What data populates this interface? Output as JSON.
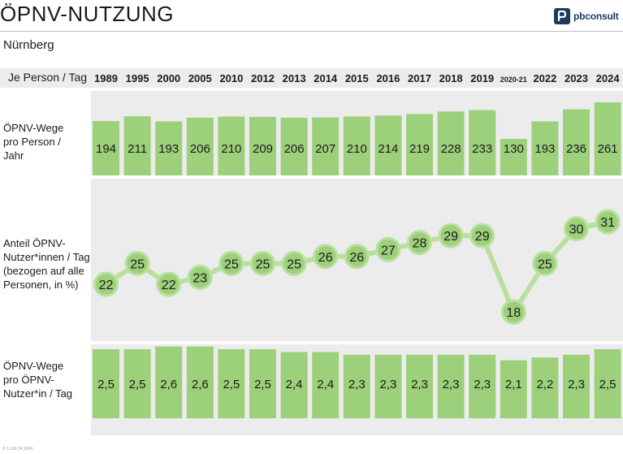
{
  "title": "ÖPNV-NUTZUNG",
  "subtitle": "Nürnberg",
  "logo_text": "pbconsult",
  "corner_label": "Je Person / Tag",
  "footer_note": "© 1.180.24.1604",
  "colors": {
    "bar": "#9dd07a",
    "circle": "#9dd07a",
    "circle_ring": "#b9e09f",
    "line": "#b9e09f",
    "band": "#ececec",
    "logo": "#1f3a5f"
  },
  "chart_data": {
    "type": "table",
    "categories": [
      "1989",
      "1995",
      "2000",
      "2005",
      "2010",
      "2012",
      "2013",
      "2014",
      "2015",
      "2016",
      "2017",
      "2018",
      "2019",
      "2020-21",
      "2022",
      "2023",
      "2024"
    ],
    "rows": [
      {
        "label": "ÖPNV-Wege pro Person / Jahr",
        "label_lines": [
          "ÖPNV-Wege",
          "pro Person /",
          "Jahr"
        ],
        "type": "bar",
        "values": [
          194,
          211,
          193,
          206,
          210,
          209,
          206,
          207,
          210,
          214,
          219,
          228,
          233,
          130,
          193,
          236,
          261
        ],
        "display": [
          "194",
          "211",
          "193",
          "206",
          "210",
          "209",
          "206",
          "207",
          "210",
          "214",
          "219",
          "228",
          "233",
          "130",
          "193",
          "236",
          "261"
        ]
      },
      {
        "label": "Anteil ÖPNV-Nutzer*innen / Tag (bezogen auf alle Personen, in %)",
        "label_lines": [
          "Anteil ÖPNV-",
          "Nutzer*innen / Tag",
          "(bezogen auf alle",
          "Personen, in %)"
        ],
        "type": "line",
        "values": [
          22,
          25,
          22,
          23,
          25,
          25,
          25,
          26,
          26,
          27,
          28,
          29,
          29,
          18,
          25,
          30,
          31
        ],
        "display": [
          "22",
          "25",
          "22",
          "23",
          "25",
          "25",
          "25",
          "26",
          "26",
          "27",
          "28",
          "29",
          "29",
          "18",
          "25",
          "30",
          "31"
        ]
      },
      {
        "label": "ÖPNV-Wege pro ÖPNV-Nutzer*in / Tag",
        "label_lines": [
          "ÖPNV-Wege",
          "pro ÖPNV-",
          "Nutzer*in / Tag"
        ],
        "type": "bar",
        "values": [
          2.5,
          2.5,
          2.6,
          2.6,
          2.5,
          2.5,
          2.4,
          2.4,
          2.3,
          2.3,
          2.3,
          2.3,
          2.3,
          2.1,
          2.2,
          2.3,
          2.5
        ],
        "display": [
          "2,5",
          "2,5",
          "2,6",
          "2,6",
          "2,5",
          "2,5",
          "2,4",
          "2,4",
          "2,3",
          "2,3",
          "2,3",
          "2,3",
          "2,3",
          "2,1",
          "2,2",
          "2,3",
          "2,5"
        ]
      }
    ]
  }
}
